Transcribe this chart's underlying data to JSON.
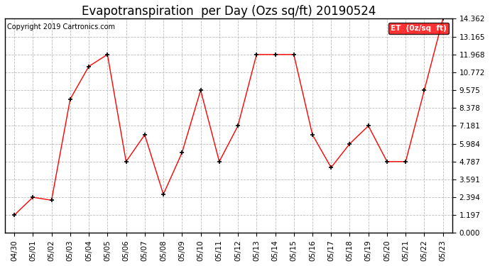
{
  "title": "Evapotranspiration  per Day (Ozs sq/ft) 20190524",
  "copyright": "Copyright 2019 Cartronics.com",
  "legend_label": "ET  (0z/sq  ft)",
  "x_labels": [
    "04/30",
    "05/01",
    "05/02",
    "05/03",
    "05/04",
    "05/05",
    "05/06",
    "05/07",
    "05/08",
    "05/09",
    "05/10",
    "05/11",
    "05/12",
    "05/13",
    "05/14",
    "05/15",
    "05/16",
    "05/17",
    "05/18",
    "05/19",
    "05/20",
    "05/21",
    "05/22",
    "05/23"
  ],
  "y_values": [
    1.197,
    2.394,
    2.197,
    8.972,
    11.17,
    11.968,
    4.787,
    6.584,
    2.59,
    5.384,
    9.575,
    4.787,
    7.181,
    11.968,
    11.968,
    11.968,
    6.584,
    4.39,
    5.984,
    7.181,
    4.787,
    4.787,
    9.575,
    14.362
  ],
  "ylim": [
    0.0,
    14.362
  ],
  "yticks": [
    0.0,
    1.197,
    2.394,
    3.591,
    4.787,
    5.984,
    7.181,
    8.378,
    9.575,
    10.772,
    11.968,
    13.165,
    14.362
  ],
  "line_color": "red",
  "marker_color": "black",
  "bg_color": "white",
  "grid_color": "#bbbbbb",
  "title_fontsize": 12,
  "tick_fontsize": 7.5,
  "copyright_fontsize": 7
}
